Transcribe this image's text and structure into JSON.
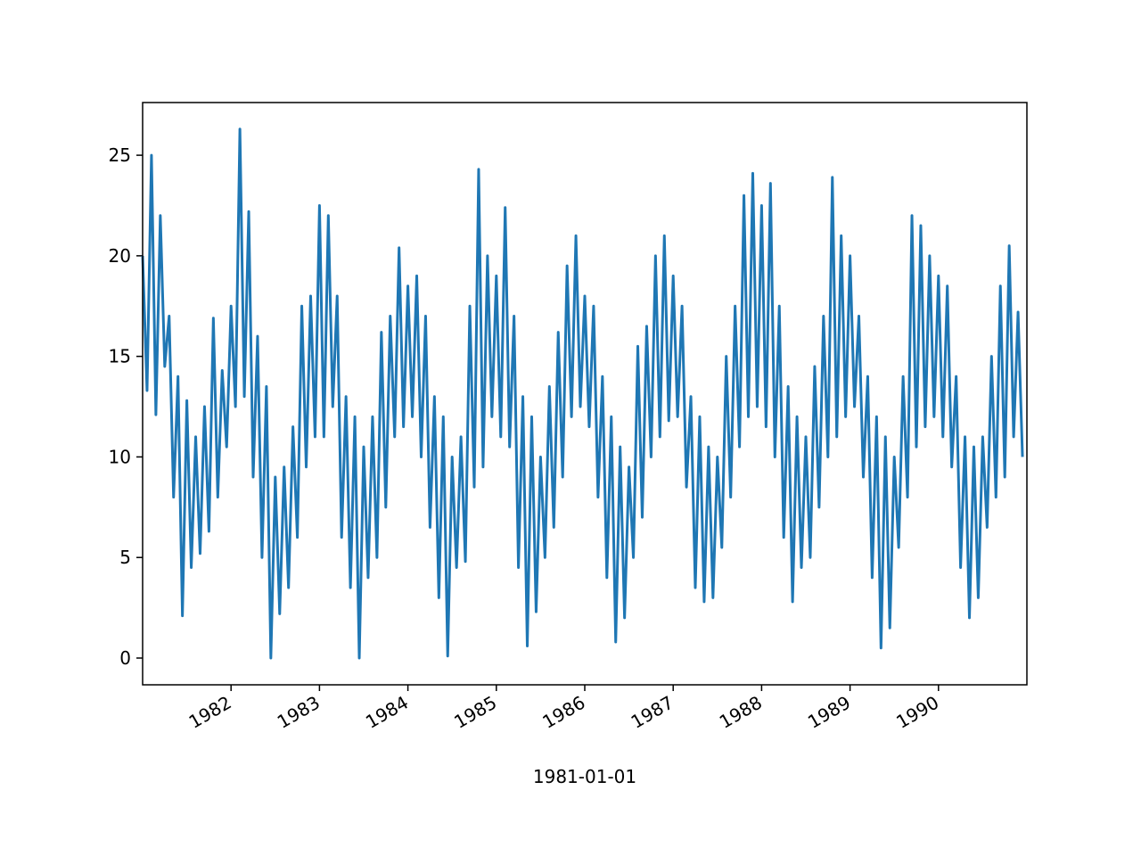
{
  "chart_data": {
    "type": "line",
    "xlabel": "1981-01-01",
    "color": "#1f77b4",
    "x": [
      1981,
      1981.05,
      1981.1,
      1981.15,
      1981.2,
      1981.25,
      1981.3,
      1981.35,
      1981.4,
      1981.45,
      1981.5,
      1981.55,
      1981.6,
      1981.65,
      1981.7,
      1981.75,
      1981.8,
      1981.85,
      1981.9,
      1981.95,
      1982,
      1982.05,
      1982.1,
      1982.15,
      1982.2,
      1982.25,
      1982.3,
      1982.35,
      1982.4,
      1982.45,
      1982.5,
      1982.55,
      1982.6,
      1982.65,
      1982.7,
      1982.75,
      1982.8,
      1982.85,
      1982.9,
      1982.95,
      1983,
      1983.05,
      1983.1,
      1983.15,
      1983.2,
      1983.25,
      1983.3,
      1983.35,
      1983.4,
      1983.45,
      1983.5,
      1983.55,
      1983.6,
      1983.65,
      1983.7,
      1983.75,
      1983.8,
      1983.85,
      1983.9,
      1983.95,
      1984,
      1984.05,
      1984.1,
      1984.15,
      1984.2,
      1984.25,
      1984.3,
      1984.35,
      1984.4,
      1984.45,
      1984.5,
      1984.55,
      1984.6,
      1984.65,
      1984.7,
      1984.75,
      1984.8,
      1984.85,
      1984.9,
      1984.95,
      1985,
      1985.05,
      1985.1,
      1985.15,
      1985.2,
      1985.25,
      1985.3,
      1985.35,
      1985.4,
      1985.45,
      1985.5,
      1985.55,
      1985.6,
      1985.65,
      1985.7,
      1985.75,
      1985.8,
      1985.85,
      1985.9,
      1985.95,
      1986,
      1986.05,
      1986.1,
      1986.15,
      1986.2,
      1986.25,
      1986.3,
      1986.35,
      1986.4,
      1986.45,
      1986.5,
      1986.55,
      1986.6,
      1986.65,
      1986.7,
      1986.75,
      1986.8,
      1986.85,
      1986.9,
      1986.95,
      1987,
      1987.05,
      1987.1,
      1987.15,
      1987.2,
      1987.25,
      1987.3,
      1987.35,
      1987.4,
      1987.45,
      1987.5,
      1987.55,
      1987.6,
      1987.65,
      1987.7,
      1987.75,
      1987.8,
      1987.85,
      1987.9,
      1987.95,
      1988,
      1988.05,
      1988.1,
      1988.15,
      1988.2,
      1988.25,
      1988.3,
      1988.35,
      1988.4,
      1988.45,
      1988.5,
      1988.55,
      1988.6,
      1988.65,
      1988.7,
      1988.75,
      1988.8,
      1988.85,
      1988.9,
      1988.95,
      1989,
      1989.05,
      1989.1,
      1989.15,
      1989.2,
      1989.25,
      1989.3,
      1989.35,
      1989.4,
      1989.45,
      1989.5,
      1989.55,
      1989.6,
      1989.65,
      1989.7,
      1989.75,
      1989.8,
      1989.85,
      1989.9,
      1989.95,
      1990,
      1990.05,
      1990.1,
      1990.15,
      1990.2,
      1990.25,
      1990.3,
      1990.35,
      1990.4,
      1990.45,
      1990.5,
      1990.55,
      1990.6,
      1990.65,
      1990.7,
      1990.75,
      1990.8,
      1990.85,
      1990.9,
      1990.95
    ],
    "values": [
      20.0,
      13.3,
      25.0,
      12.1,
      22.0,
      14.5,
      17.0,
      8.0,
      14.0,
      2.1,
      12.8,
      4.5,
      11.0,
      5.2,
      12.5,
      6.3,
      16.9,
      8.0,
      14.3,
      10.5,
      17.5,
      12.5,
      26.3,
      13.0,
      22.2,
      9.0,
      16.0,
      5.0,
      13.5,
      0.0,
      9.0,
      2.2,
      9.5,
      3.5,
      11.5,
      6.0,
      17.5,
      9.5,
      18.0,
      11.0,
      22.5,
      11.0,
      22.0,
      12.5,
      18.0,
      6.0,
      13.0,
      3.5,
      12.0,
      0.0,
      10.5,
      4.0,
      12.0,
      5.0,
      16.2,
      7.5,
      17.0,
      11.0,
      20.4,
      11.5,
      18.5,
      12.0,
      19.0,
      10.0,
      17.0,
      6.5,
      13.0,
      3.0,
      12.0,
      0.1,
      10.0,
      4.5,
      11.0,
      4.8,
      17.5,
      8.5,
      24.3,
      9.5,
      20.0,
      12.0,
      19.0,
      11.0,
      22.4,
      10.5,
      17.0,
      4.5,
      13.0,
      0.6,
      12.0,
      2.3,
      10.0,
      5.0,
      13.5,
      6.5,
      16.2,
      9.0,
      19.5,
      12.0,
      21.0,
      12.5,
      18.0,
      11.5,
      17.5,
      8.0,
      14.0,
      4.0,
      12.0,
      0.8,
      10.5,
      2.0,
      9.5,
      5.0,
      15.5,
      7.0,
      16.5,
      10.0,
      20.0,
      11.0,
      21.0,
      11.8,
      19.0,
      12.0,
      17.5,
      8.5,
      13.0,
      3.5,
      12.0,
      2.8,
      10.5,
      3.0,
      10.0,
      5.5,
      15.0,
      8.0,
      17.5,
      10.5,
      23.0,
      12.0,
      24.1,
      12.5,
      22.5,
      11.5,
      23.6,
      10.0,
      17.5,
      6.0,
      13.5,
      2.8,
      12.0,
      4.5,
      11.0,
      5.0,
      14.5,
      7.5,
      17.0,
      10.0,
      23.9,
      11.0,
      21.0,
      12.0,
      20.0,
      12.5,
      17.0,
      9.0,
      14.0,
      4.0,
      12.0,
      0.5,
      11.0,
      1.5,
      10.0,
      5.5,
      14.0,
      8.0,
      22.0,
      10.5,
      21.5,
      11.5,
      20.0,
      12.0,
      19.0,
      11.0,
      18.5,
      9.5,
      14.0,
      4.5,
      11.0,
      2.0,
      10.5,
      3.0,
      11.0,
      6.5,
      15.0,
      8.0,
      18.5,
      9.0,
      20.5,
      11.0,
      17.2,
      10.0
    ],
    "xlim": [
      1981,
      1991
    ],
    "xticks": [
      1982,
      1983,
      1984,
      1985,
      1986,
      1987,
      1988,
      1989,
      1990
    ],
    "ylim": [
      -1.33,
      27.62
    ],
    "yticks": [
      0,
      5,
      10,
      15,
      20,
      25
    ]
  }
}
